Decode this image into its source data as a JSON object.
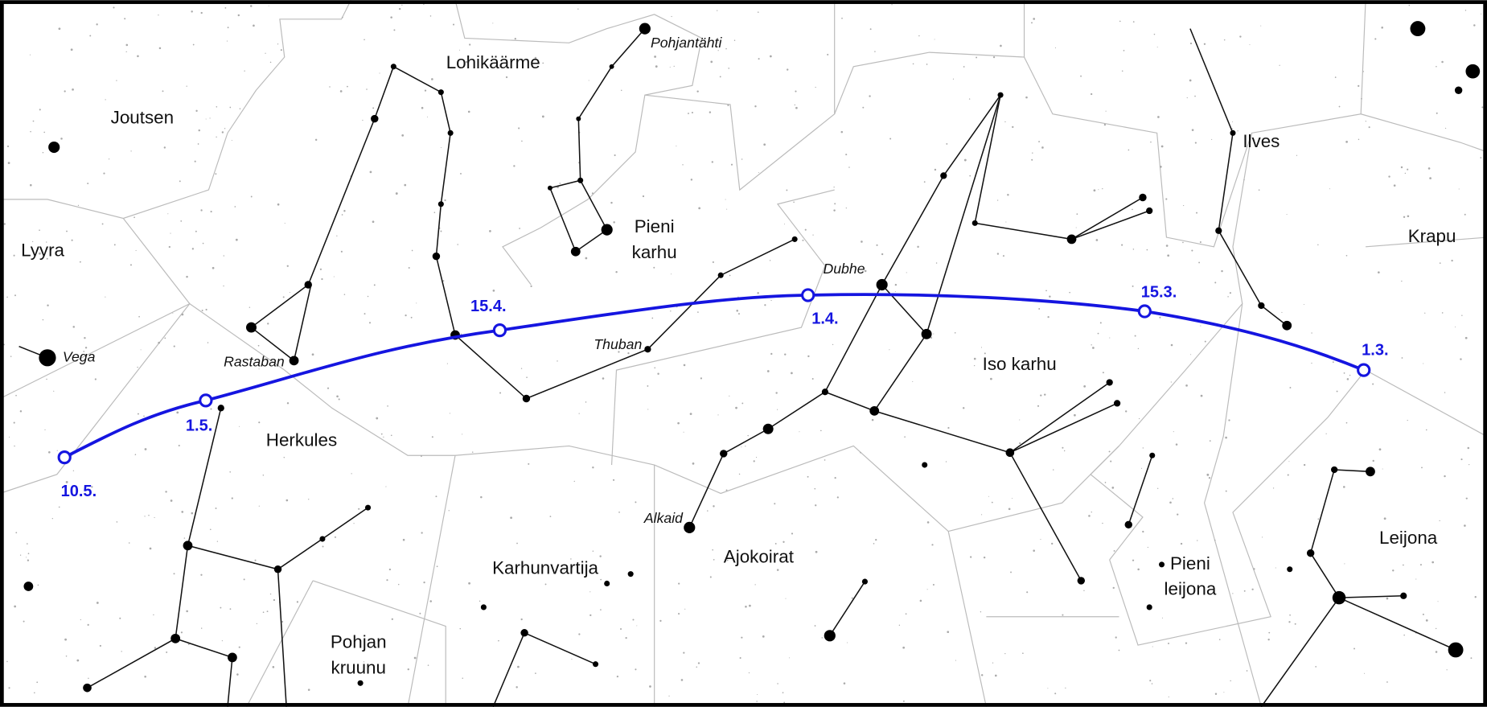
{
  "constellations": [
    {
      "lines": [
        "Joutsen"
      ]
    },
    {
      "lines": [
        "Lohikäärme"
      ]
    },
    {
      "lines": [
        "Lyyra"
      ]
    },
    {
      "lines": [
        "Pieni",
        "karhu"
      ]
    },
    {
      "lines": [
        "Ilves"
      ]
    },
    {
      "lines": [
        "Krapu"
      ]
    },
    {
      "lines": [
        "Iso karhu"
      ]
    },
    {
      "lines": [
        "Herkules"
      ]
    },
    {
      "lines": [
        "Karhunvartija"
      ]
    },
    {
      "lines": [
        "Ajokoirat"
      ]
    },
    {
      "lines": [
        "Pieni",
        "leijona"
      ]
    },
    {
      "lines": [
        "Leijona"
      ]
    },
    {
      "lines": [
        "Pohjan",
        "kruunu"
      ]
    }
  ],
  "stars": [
    "Pohjantähti",
    "Vega",
    "Rastaban",
    "Thuban",
    "Dubhe",
    "Alkaid"
  ],
  "dates": [
    "10.5.",
    "1.5.",
    "15.4.",
    "1.4.",
    "15.3.",
    "1.3."
  ]
}
